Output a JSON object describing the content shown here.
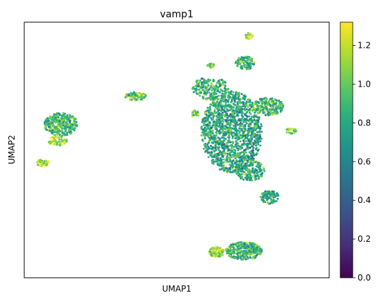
{
  "chart_data": {
    "type": "scatter",
    "title": "vamp1",
    "xlabel": "UMAP1",
    "ylabel": "UMAP2",
    "xlim": [
      0,
      100
    ],
    "ylim": [
      0,
      100
    ],
    "x_ticks_shown": false,
    "y_ticks_shown": false,
    "grid": false,
    "legend": "none",
    "colormap": "viridis",
    "colorbar": {
      "vmin": 0.0,
      "vmax": 1.32,
      "ticks": [
        "0.0",
        "0.2",
        "0.4",
        "0.6",
        "0.8",
        "1.0",
        "1.2"
      ]
    },
    "clusters": [
      {
        "cx": 12.0,
        "cy": 60.0,
        "rx": 5.5,
        "ry": 4.5,
        "n": 320,
        "mean": 0.88
      },
      {
        "cx": 11.0,
        "cy": 53.5,
        "rx": 3.0,
        "ry": 2.0,
        "n": 60,
        "mean": 1.12
      },
      {
        "cx": 6.0,
        "cy": 45.0,
        "rx": 2.0,
        "ry": 1.4,
        "n": 45,
        "mean": 1.15
      },
      {
        "cx": 36.5,
        "cy": 71.0,
        "rx": 3.5,
        "ry": 1.6,
        "n": 90,
        "mean": 0.95
      },
      {
        "cx": 68.0,
        "cy": 57.0,
        "rx": 10.0,
        "ry": 16.0,
        "n": 1500,
        "mean": 0.78
      },
      {
        "cx": 61.0,
        "cy": 74.0,
        "rx": 6.0,
        "ry": 4.5,
        "n": 220,
        "mean": 0.85
      },
      {
        "cx": 74.0,
        "cy": 42.0,
        "rx": 5.0,
        "ry": 4.0,
        "n": 200,
        "mean": 0.82
      },
      {
        "cx": 80.0,
        "cy": 67.0,
        "rx": 5.0,
        "ry": 3.5,
        "n": 220,
        "mean": 0.88
      },
      {
        "cx": 80.5,
        "cy": 31.5,
        "rx": 3.0,
        "ry": 2.6,
        "n": 110,
        "mean": 0.78
      },
      {
        "cx": 72.5,
        "cy": 84.0,
        "rx": 3.2,
        "ry": 2.6,
        "n": 110,
        "mean": 0.88
      },
      {
        "cx": 73.5,
        "cy": 94.5,
        "rx": 1.5,
        "ry": 1.3,
        "n": 30,
        "mean": 1.15
      },
      {
        "cx": 61.0,
        "cy": 83.0,
        "rx": 1.3,
        "ry": 1.0,
        "n": 20,
        "mean": 1.05
      },
      {
        "cx": 87.5,
        "cy": 57.5,
        "rx": 1.8,
        "ry": 1.2,
        "n": 30,
        "mean": 1.1
      },
      {
        "cx": 56.0,
        "cy": 64.0,
        "rx": 1.3,
        "ry": 1.5,
        "n": 25,
        "mean": 1.0
      },
      {
        "cx": 72.0,
        "cy": 10.5,
        "rx": 6.0,
        "ry": 3.5,
        "n": 320,
        "mean": 0.85
      },
      {
        "cx": 63.0,
        "cy": 10.0,
        "rx": 2.5,
        "ry": 2.0,
        "n": 110,
        "mean": 1.15
      }
    ]
  }
}
